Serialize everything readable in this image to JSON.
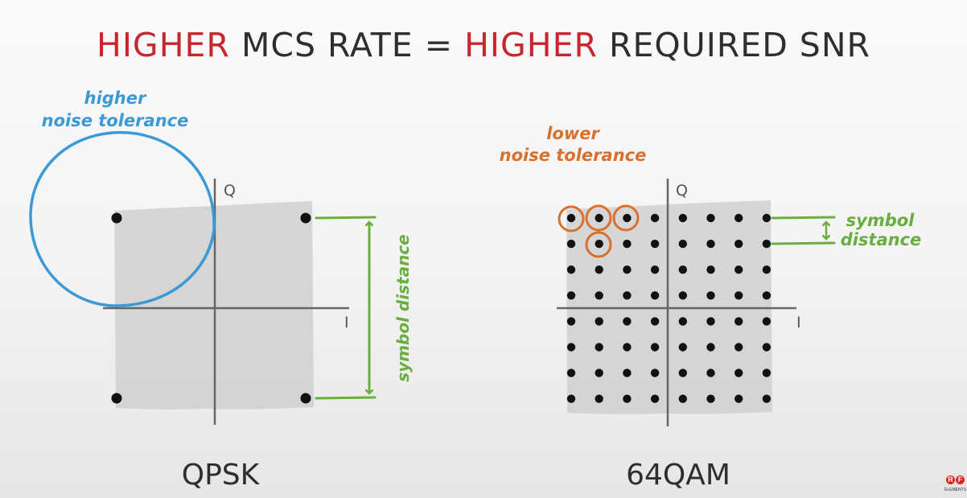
{
  "title": {
    "part1": "HIGHER",
    "part2": " MCS RATE = ",
    "part3": "HIGHER",
    "part4": " REQUIRED SNR"
  },
  "colors": {
    "red": "#c8262f",
    "dark": "#2e2e2e",
    "blue": "#3b9ad6",
    "green": "#6aae3f",
    "orange": "#d8712f",
    "shade": "#d0d0d0",
    "dot": "#111111"
  },
  "qpsk": {
    "caption": "QPSK",
    "q_label": "Q",
    "i_label": "I",
    "annotation_line1": "higher",
    "annotation_line2": "noise tolerance",
    "distance_label": "symbol distance",
    "constellation_size": 4
  },
  "qam": {
    "caption": "64QAM",
    "q_label": "Q",
    "i_label": "I",
    "annotation_line1": "lower",
    "annotation_line2": "noise tolerance",
    "distance_line1": "symbol",
    "distance_line2": "distance",
    "constellation_size": 64
  },
  "logo": {
    "letters": "RF",
    "text": "ELEMENTS"
  }
}
